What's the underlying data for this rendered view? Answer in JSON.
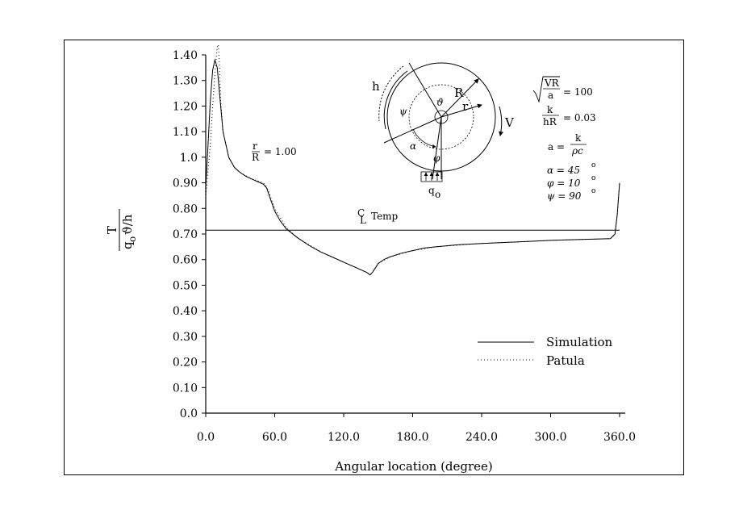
{
  "chart_data": {
    "type": "line",
    "title": "",
    "xlabel": "Angular location (degree)",
    "ylabel": "T / q₀ϑ/h",
    "xlim": [
      0,
      360
    ],
    "ylim": [
      0,
      1.4
    ],
    "x_ticks": [
      "0.0",
      "60.0",
      "120.0",
      "180.0",
      "240.0",
      "300.0",
      "360.0"
    ],
    "y_ticks": [
      "0.0",
      "0.10",
      "0.20",
      "0.30",
      "0.40",
      "0.50",
      "0.60",
      "0.70",
      "0.80",
      "0.90",
      "1.0",
      "1.10",
      "1.20",
      "1.30",
      "1.40"
    ],
    "grid": false,
    "legend_position": "bottom-right",
    "series": [
      {
        "name": "Simulation",
        "style": "solid",
        "x": [
          0,
          2,
          4,
          6,
          8,
          10,
          12,
          15,
          20,
          25,
          30,
          35,
          40,
          45,
          50,
          53,
          56,
          60,
          65,
          70,
          80,
          90,
          100,
          110,
          120,
          130,
          140,
          143,
          145,
          148,
          150,
          155,
          160,
          170,
          180,
          190,
          200,
          220,
          240,
          260,
          280,
          300,
          320,
          340,
          352,
          356,
          358,
          360
        ],
        "y": [
          0.88,
          1.05,
          1.22,
          1.34,
          1.38,
          1.35,
          1.25,
          1.1,
          1.0,
          0.96,
          0.94,
          0.925,
          0.915,
          0.905,
          0.895,
          0.88,
          0.84,
          0.79,
          0.75,
          0.72,
          0.685,
          0.655,
          0.63,
          0.61,
          0.59,
          0.57,
          0.55,
          0.54,
          0.55,
          0.57,
          0.585,
          0.6,
          0.61,
          0.625,
          0.635,
          0.645,
          0.65,
          0.658,
          0.663,
          0.667,
          0.671,
          0.675,
          0.678,
          0.68,
          0.682,
          0.7,
          0.78,
          0.9
        ]
      },
      {
        "name": "Patula",
        "style": "dotted",
        "x": [
          0,
          2,
          4,
          6,
          8,
          10,
          11,
          12,
          13,
          15,
          20,
          25,
          30,
          40,
          50,
          53,
          56,
          60,
          70,
          80,
          100,
          120,
          140,
          143,
          145,
          150,
          160,
          180,
          200,
          240,
          300,
          352,
          356,
          358,
          360
        ],
        "y": [
          0.84,
          0.95,
          1.05,
          1.2,
          1.33,
          1.43,
          1.46,
          1.35,
          1.22,
          1.1,
          1.0,
          0.96,
          0.94,
          0.915,
          0.9,
          0.885,
          0.85,
          0.8,
          0.725,
          0.685,
          0.63,
          0.59,
          0.55,
          0.54,
          0.55,
          0.585,
          0.61,
          0.635,
          0.65,
          0.663,
          0.675,
          0.682,
          0.7,
          0.78,
          0.9
        ]
      }
    ],
    "reference_line": {
      "label_top": "C",
      "label_bottom": "L",
      "label_text": "Temp",
      "y": 0.715
    },
    "annotations": {
      "ratio_label_num": "r",
      "ratio_label_den": "R",
      "ratio_value": "= 1.00"
    }
  },
  "legend": {
    "simulation": "Simulation",
    "patula": "Patula"
  },
  "parameters": {
    "p1_num": "VR",
    "p1_den": "a",
    "p1_val": "= 100",
    "p2_num": "k",
    "p2_den": "hR",
    "p2_val": "= 0.03",
    "p3_left": "a  =",
    "p3_num": "k",
    "p3_den": "ρc",
    "p4": "α  =  45",
    "p5": "φ  =  10",
    "p6": "ψ  =  90",
    "deg": "o"
  },
  "diagram": {
    "h": "h",
    "R": "R",
    "r": "r",
    "V": "V",
    "theta": "ϑ",
    "psi": "ψ",
    "alpha": "α",
    "phi": "φ",
    "q": "q",
    "q_sub": "o"
  },
  "axis_label": {
    "y_num": "T",
    "y_den_q": "q",
    "y_den_sub": "o",
    "y_den_rest": "ϑ/h"
  }
}
